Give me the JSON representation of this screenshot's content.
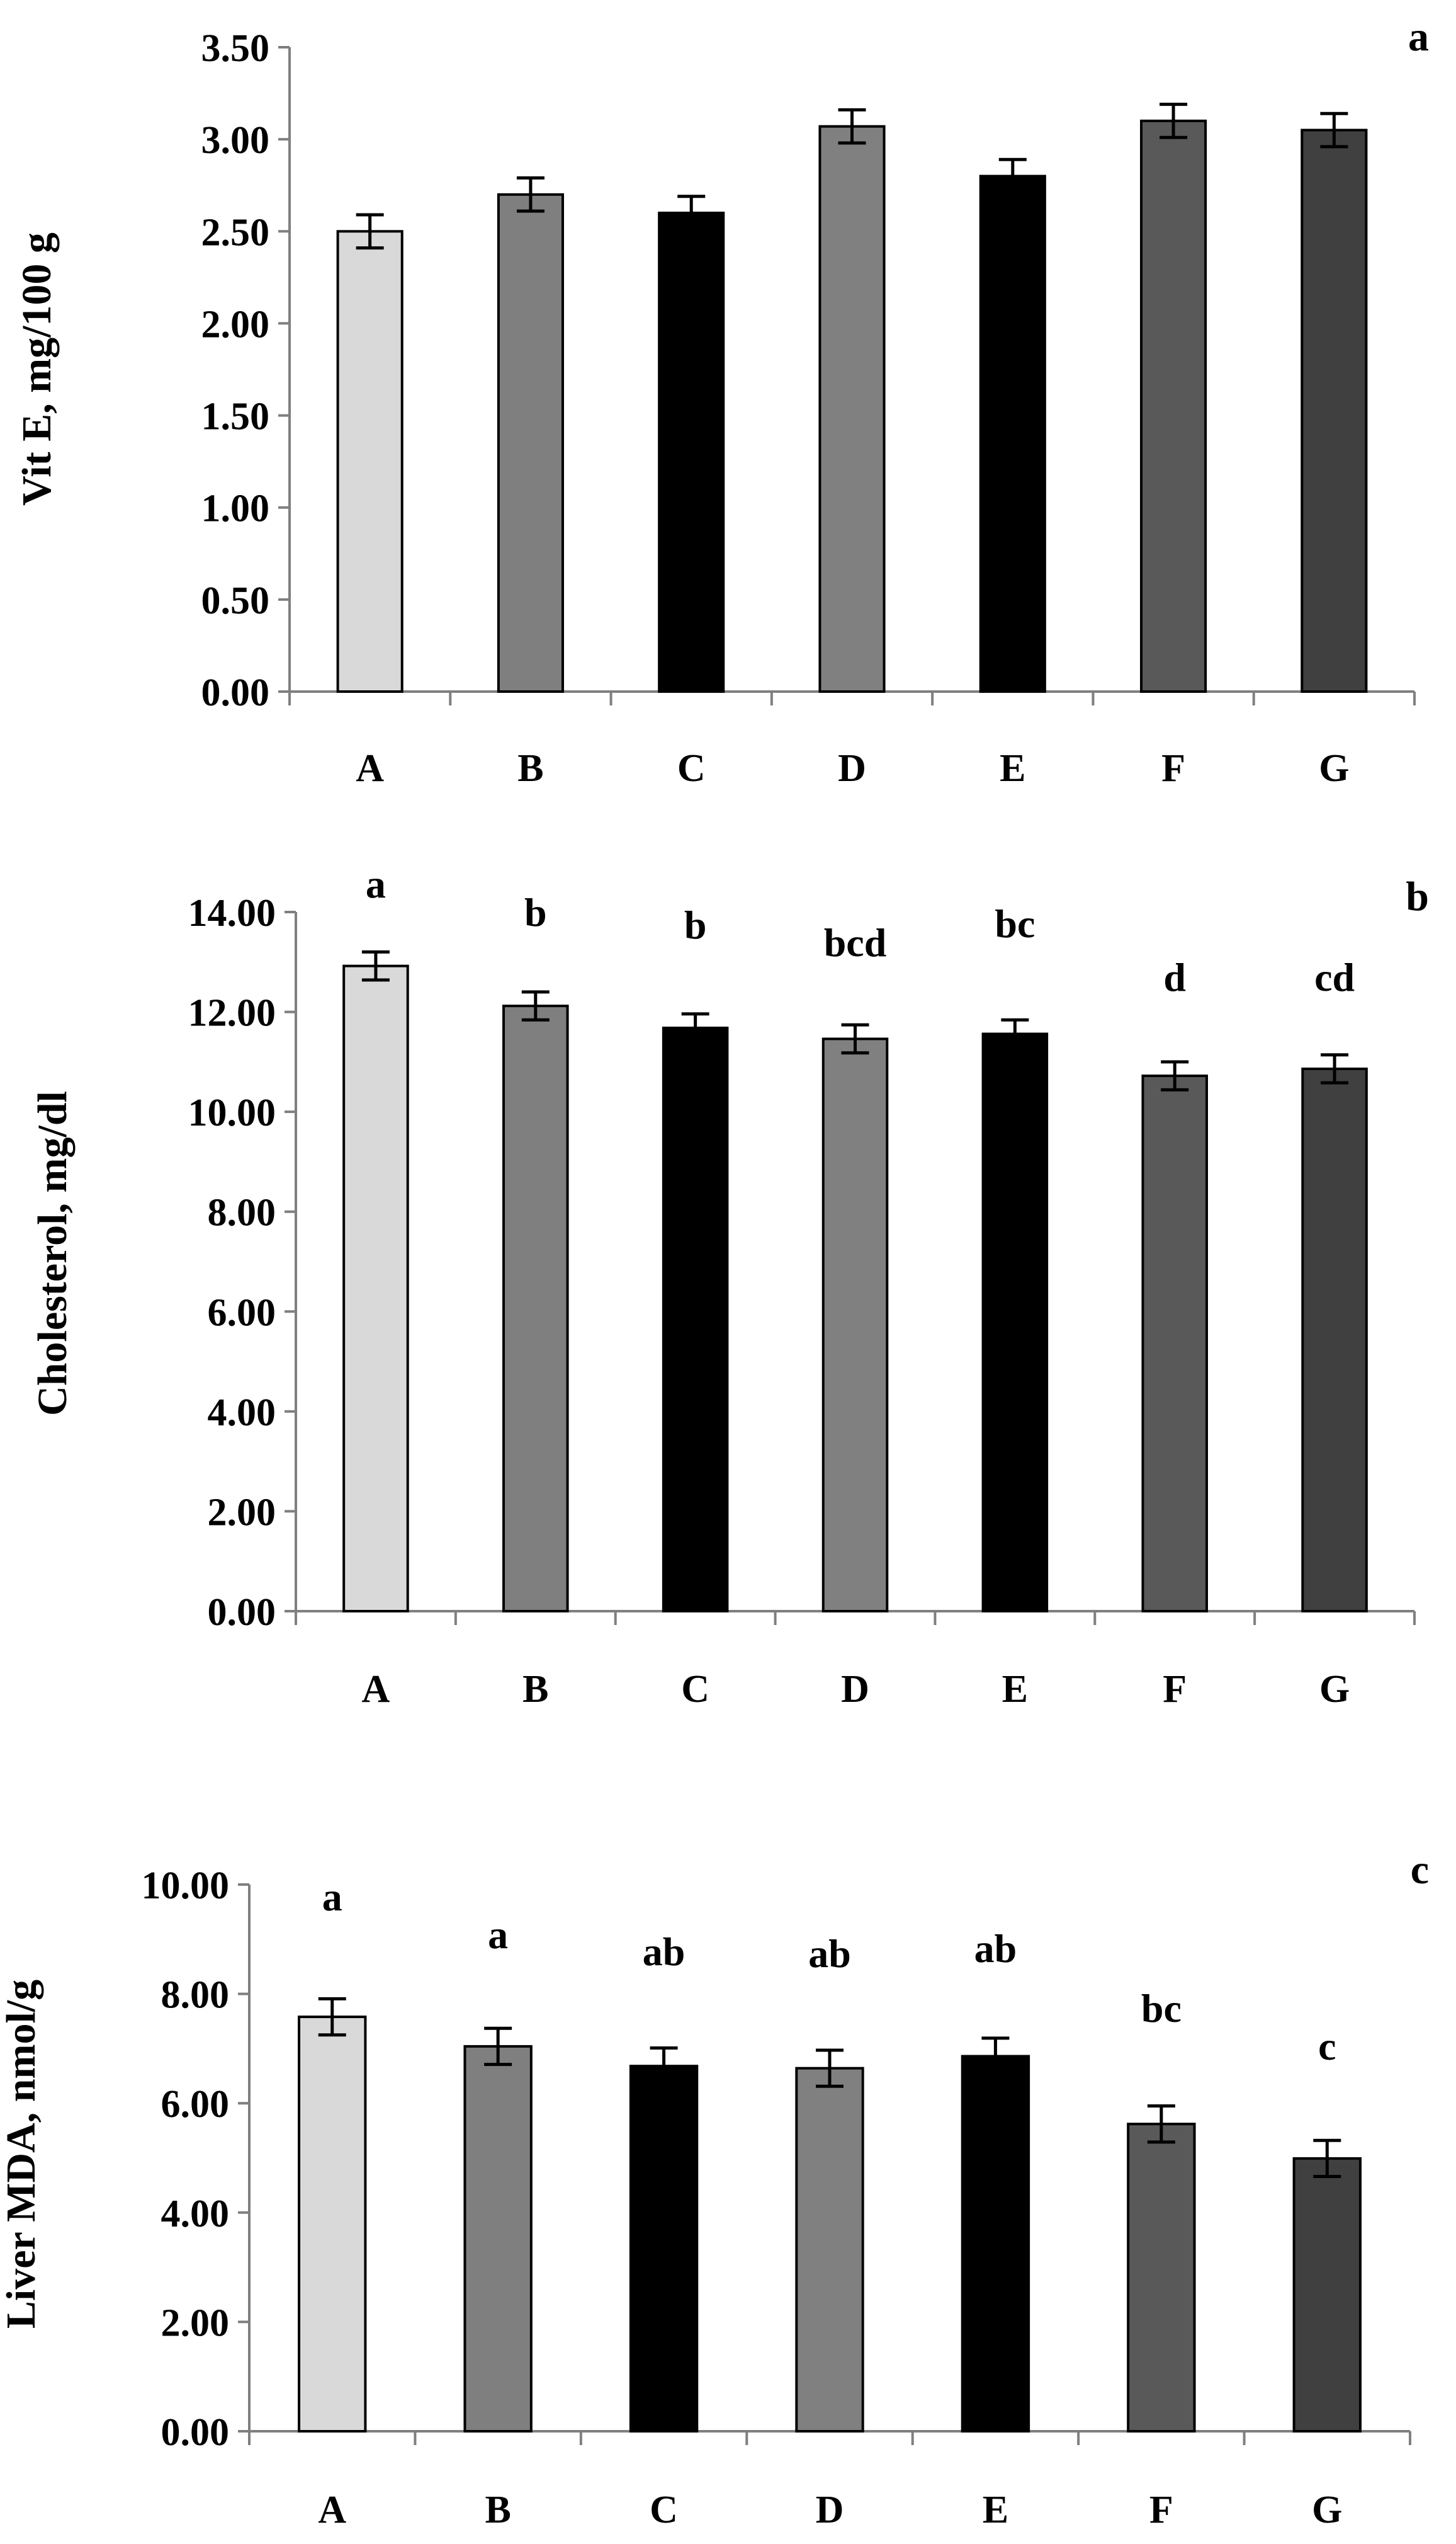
{
  "colors": {
    "A": "#d9d9d9",
    "B": "#7f7f7f",
    "C": "#000000",
    "D": "#808080",
    "E": "#000000",
    "F": "#595959",
    "G": "#404040",
    "axis": "#7f7f7f"
  },
  "chart_data": [
    {
      "type": "bar",
      "panel": "a",
      "categories": [
        "A",
        "B",
        "C",
        "D",
        "E",
        "F",
        "G"
      ],
      "values": [
        2.5,
        2.7,
        2.6,
        3.07,
        2.8,
        3.1,
        3.05
      ],
      "errors": [
        0.09,
        0.09,
        0.09,
        0.09,
        0.09,
        0.09,
        0.09
      ],
      "significance": [],
      "ylabel": "Vit E, mg/100 g",
      "ylim": [
        0,
        3.5
      ],
      "yticks": [
        "0.00",
        "0.50",
        "1.00",
        "1.50",
        "2.00",
        "2.50",
        "3.00",
        "3.50"
      ],
      "ytick_values": [
        0,
        0.5,
        1.0,
        1.5,
        2.0,
        2.5,
        3.0,
        3.5
      ]
    },
    {
      "type": "bar",
      "panel": "b",
      "categories": [
        "A",
        "B",
        "C",
        "D",
        "E",
        "F",
        "G"
      ],
      "values": [
        12.92,
        12.12,
        11.68,
        11.46,
        11.56,
        10.72,
        10.86
      ],
      "errors": [
        0.28,
        0.28,
        0.28,
        0.28,
        0.28,
        0.28,
        0.28
      ],
      "significance": [
        "a",
        "b",
        "b",
        "bcd",
        "bc",
        "d",
        "cd"
      ],
      "ylabel": "Cholesterol, mg/dl",
      "ylim": [
        0,
        14
      ],
      "yticks": [
        "0.00",
        "2.00",
        "4.00",
        "6.00",
        "8.00",
        "10.00",
        "12.00",
        "14.00"
      ],
      "ytick_values": [
        0,
        2,
        4,
        6,
        8,
        10,
        12,
        14
      ]
    },
    {
      "type": "bar",
      "panel": "c",
      "categories": [
        "A",
        "B",
        "C",
        "D",
        "E",
        "F",
        "G"
      ],
      "values": [
        7.58,
        7.04,
        6.68,
        6.64,
        6.86,
        5.62,
        4.99
      ],
      "errors": [
        0.33,
        0.33,
        0.33,
        0.33,
        0.33,
        0.33,
        0.33
      ],
      "significance": [
        "a",
        "a",
        "ab",
        "ab",
        "ab",
        "bc",
        "c"
      ],
      "ylabel": "Liver MDA, nmol/g",
      "ylim": [
        0,
        10
      ],
      "yticks": [
        "0.00",
        "2.00",
        "4.00",
        "6.00",
        "8.00",
        "10.00"
      ],
      "ytick_values": [
        0,
        2,
        4,
        6,
        8,
        10
      ]
    }
  ]
}
